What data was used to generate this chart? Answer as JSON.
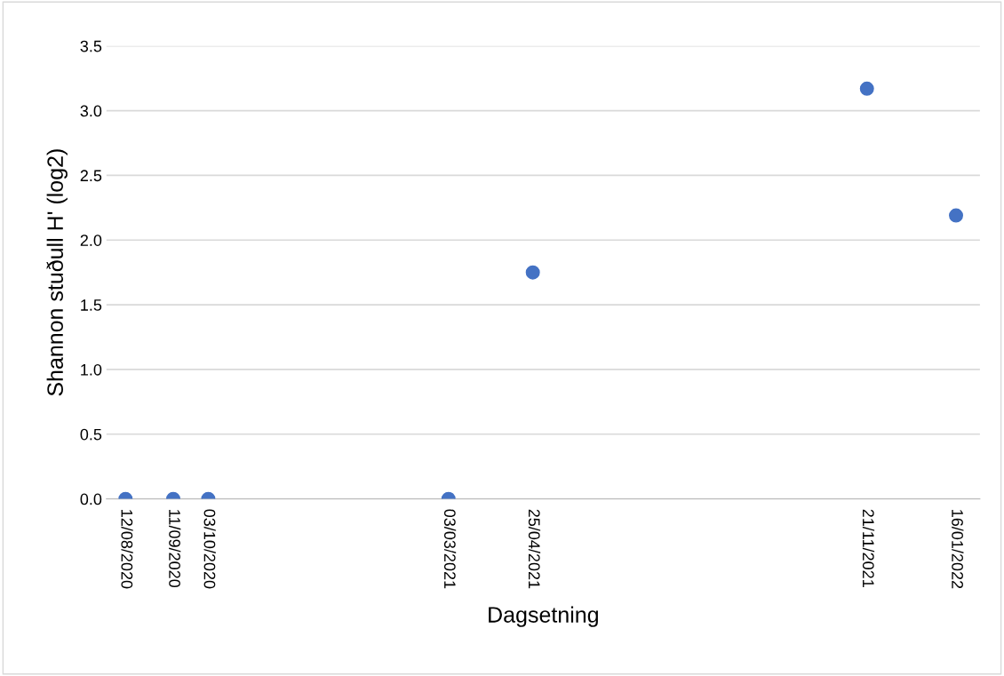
{
  "chart_data": {
    "type": "scatter",
    "xlabel": "Dagsetning",
    "ylabel": "Shannon stuðull H' (log2)",
    "x": [
      "2020-08-12",
      "2020-09-11",
      "2020-10-03",
      "2021-03-03",
      "2021-04-25",
      "2021-11-21",
      "2022-01-16"
    ],
    "series": [
      {
        "color": "#4472c4",
        "values": [
          0,
          0,
          0,
          0,
          1.75,
          3.17,
          2.19
        ]
      }
    ],
    "xlim": [
      "2020-07-31",
      "2022-01-31"
    ],
    "xticks": [
      {
        "value": "2020-08-12",
        "label": "12/08/2020"
      },
      {
        "value": "2020-09-11",
        "label": "11/09/2020"
      },
      {
        "value": "2020-10-03",
        "label": "03/10/2020"
      },
      {
        "value": "2021-03-03",
        "label": "03/03/2021"
      },
      {
        "value": "2021-04-25",
        "label": "25/04/2021"
      },
      {
        "value": "2021-11-21",
        "label": "21/11/2021"
      },
      {
        "value": "2022-01-16",
        "label": "16/01/2022"
      }
    ],
    "ylim": [
      0,
      3.5
    ],
    "yticks": [
      {
        "value": 0,
        "label": "0.0"
      },
      {
        "value": 0.5,
        "label": "0.5"
      },
      {
        "value": 1,
        "label": "1.0"
      },
      {
        "value": 1.5,
        "label": "1.5"
      },
      {
        "value": 2,
        "label": "2.0"
      },
      {
        "value": 2.5,
        "label": "2.5"
      },
      {
        "value": 3,
        "label": "3.0"
      },
      {
        "value": 3.5,
        "label": "3.5"
      }
    ],
    "grid": "y",
    "marker": "circle"
  }
}
